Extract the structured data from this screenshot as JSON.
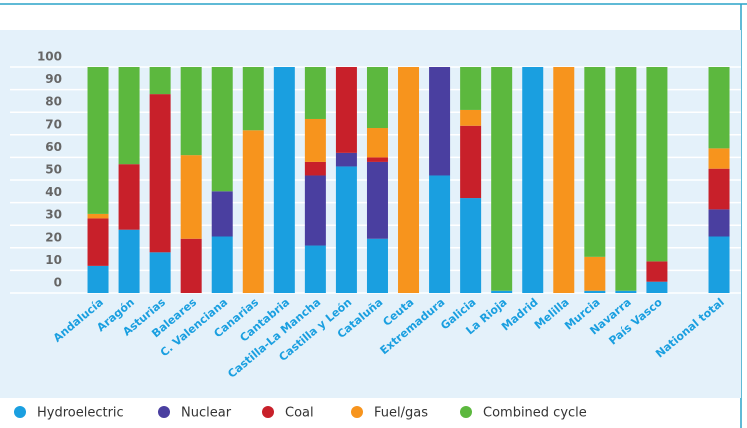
{
  "chart_data": {
    "type": "stacked_bar",
    "categories": [
      "Andalucía",
      "Aragón",
      "Asturias",
      "Baleares",
      "C. Valenciana",
      "Canarias",
      "Cantabria",
      "Castilla-La Mancha",
      "Castilla y León",
      "Cataluña",
      "Ceuta",
      "Extremadura",
      "Galicia",
      "La Rioja",
      "Madrid",
      "Melilla",
      "Murcia",
      "Navarra",
      "País Vasco",
      null,
      "National total"
    ],
    "series": [
      {
        "name": "Hydroelectric",
        "color": "#1a9fe0",
        "values": [
          12,
          28,
          18,
          0,
          25,
          0,
          100,
          21,
          56,
          24,
          0,
          52,
          42,
          1,
          100,
          0,
          1,
          1,
          5,
          null,
          25
        ]
      },
      {
        "name": "Nuclear",
        "color": "#4a3fa0",
        "values": [
          0,
          0,
          0,
          0,
          20,
          0,
          0,
          31,
          6,
          34,
          0,
          48,
          0,
          0,
          0,
          0,
          0,
          0,
          0,
          null,
          12
        ]
      },
      {
        "name": "Coal",
        "color": "#c8202a",
        "values": [
          21,
          29,
          70,
          24,
          0,
          0,
          0,
          6,
          38,
          2,
          0,
          0,
          32,
          0,
          0,
          0,
          0,
          0,
          9,
          null,
          18
        ]
      },
      {
        "name": "Fuel/gas",
        "color": "#f7941d",
        "values": [
          2,
          0,
          0,
          37,
          0,
          72,
          0,
          19,
          0,
          13,
          100,
          0,
          7,
          0,
          0,
          100,
          15,
          0,
          0,
          null,
          9
        ]
      },
      {
        "name": "Combined cycle",
        "color": "#5cb83e",
        "values": [
          65,
          43,
          12,
          39,
          55,
          28,
          0,
          23,
          0,
          27,
          0,
          0,
          19,
          99,
          0,
          0,
          84,
          99,
          86,
          null,
          36
        ]
      }
    ],
    "ylim": [
      0,
      100
    ],
    "yticks": [
      0,
      10,
      20,
      30,
      40,
      50,
      60,
      70,
      80,
      90,
      100
    ],
    "grid": true
  }
}
